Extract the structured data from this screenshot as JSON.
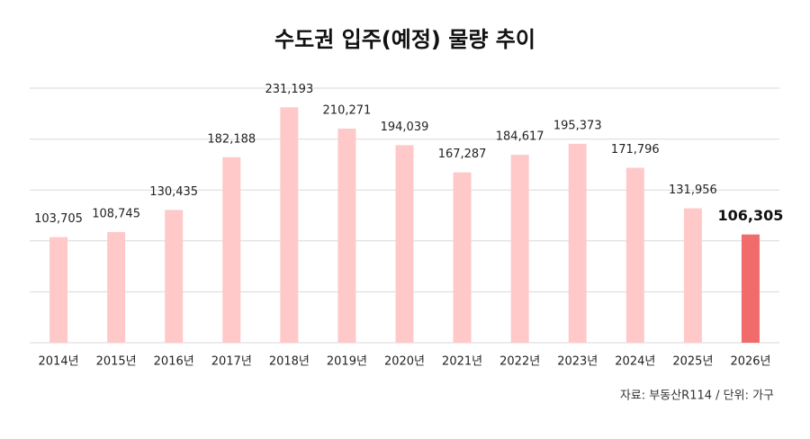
{
  "chart_data": {
    "type": "bar",
    "title": "수도권 입주(예정) 물량 추이",
    "categories": [
      "2014년",
      "2015년",
      "2016년",
      "2017년",
      "2018년",
      "2019년",
      "2020년",
      "2021년",
      "2022년",
      "2023년",
      "2024년",
      "2025년",
      "2026년"
    ],
    "values": [
      103705,
      108745,
      130435,
      182188,
      231193,
      210271,
      194039,
      167287,
      184617,
      195373,
      171796,
      131956,
      106305
    ],
    "value_labels": [
      "103,705",
      "108,745",
      "130,435",
      "182,188",
      "231,193",
      "210,271",
      "194,039",
      "167,287",
      "184,617",
      "195,373",
      "171,796",
      "131,956",
      "106,305"
    ],
    "colors": [
      "#ffc9c9",
      "#ffc9c9",
      "#ffc9c9",
      "#ffc9c9",
      "#ffc9c9",
      "#ffc9c9",
      "#ffc9c9",
      "#ffc9c9",
      "#ffc9c9",
      "#ffc9c9",
      "#ffc9c9",
      "#ffc9c9",
      "#f26b6b"
    ],
    "ylim": [
      0,
      250000
    ],
    "yticks": [
      0,
      50000,
      100000,
      150000,
      200000,
      250000
    ],
    "grid": true,
    "source": "자료: 부동산R114 / 단위: 가구"
  }
}
